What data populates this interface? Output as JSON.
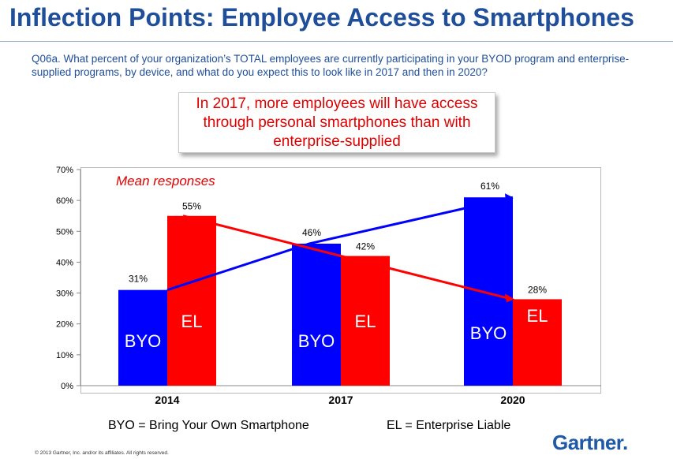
{
  "title": "Inflection Points: Employee Access to Smartphones",
  "question": "Q06a. What percent of your organization’s TOTAL employees are currently participating in your BYOD program and enterprise-supplied programs, by device, and what do you expect this to look like in 2017 and then in 2020?",
  "callout": "In 2017, more employees will have access through personal smartphones than with enterprise-supplied",
  "legend": {
    "byo": "BYO = Bring Your Own Smartphone",
    "el": "EL = Enterprise Liable"
  },
  "copyright": "© 2013 Gartner, Inc. and/or its affiliates. All rights reserved.",
  "logo": "Gartner",
  "colors": {
    "byo": "#0000ff",
    "el": "#ff0000",
    "title": "#1f4e9a"
  },
  "chart_data": {
    "type": "bar",
    "categories": [
      "2014",
      "2017",
      "2020"
    ],
    "series": [
      {
        "name": "BYO",
        "values": [
          31,
          46,
          61
        ],
        "data_labels": [
          "31%",
          "46%",
          "61%"
        ]
      },
      {
        "name": "EL",
        "values": [
          55,
          42,
          28
        ],
        "data_labels": [
          "55%",
          "42%",
          "28%"
        ]
      }
    ],
    "trend_lines": [
      "BYO",
      "EL"
    ],
    "annotation": "Mean responses",
    "y_ticks": [
      "0%",
      "10%",
      "20%",
      "30%",
      "40%",
      "50%",
      "60%",
      "70%"
    ],
    "ylim": [
      0,
      70
    ],
    "grid": false,
    "legend_position": "bottom"
  }
}
